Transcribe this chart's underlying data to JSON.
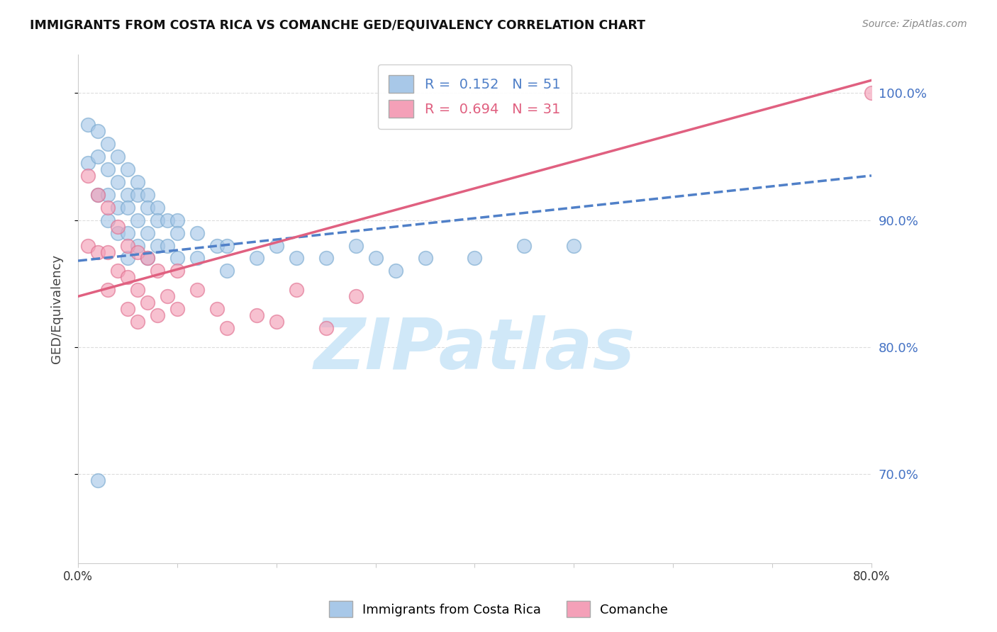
{
  "title": "IMMIGRANTS FROM COSTA RICA VS COMANCHE GED/EQUIVALENCY CORRELATION CHART",
  "source": "Source: ZipAtlas.com",
  "ylabel": "GED/Equivalency",
  "yticks": [
    0.7,
    0.8,
    0.9,
    1.0
  ],
  "ytick_labels": [
    "70.0%",
    "80.0%",
    "90.0%",
    "100.0%"
  ],
  "xlim": [
    0.0,
    0.08
  ],
  "ylim": [
    0.63,
    1.03
  ],
  "blue_R": 0.152,
  "blue_N": 51,
  "pink_R": 0.694,
  "pink_N": 31,
  "blue_color": "#a8c8e8",
  "pink_color": "#f4a0b8",
  "blue_edge_color": "#7aaad0",
  "pink_edge_color": "#e07090",
  "blue_line_color": "#5080c8",
  "pink_line_color": "#e06080",
  "legend_label_blue": "Immigrants from Costa Rica",
  "legend_label_pink": "Comanche",
  "watermark": "ZIPatlas",
  "watermark_color": "#d0e8f8",
  "blue_scatter_x": [
    0.001,
    0.001,
    0.002,
    0.002,
    0.002,
    0.003,
    0.003,
    0.003,
    0.003,
    0.004,
    0.004,
    0.004,
    0.004,
    0.005,
    0.005,
    0.005,
    0.005,
    0.005,
    0.006,
    0.006,
    0.006,
    0.006,
    0.007,
    0.007,
    0.007,
    0.007,
    0.008,
    0.008,
    0.008,
    0.009,
    0.009,
    0.01,
    0.01,
    0.01,
    0.012,
    0.012,
    0.014,
    0.015,
    0.015,
    0.018,
    0.02,
    0.022,
    0.025,
    0.028,
    0.03,
    0.032,
    0.035,
    0.04,
    0.045,
    0.05,
    0.002
  ],
  "blue_scatter_y": [
    0.975,
    0.945,
    0.97,
    0.95,
    0.92,
    0.96,
    0.94,
    0.92,
    0.9,
    0.95,
    0.93,
    0.91,
    0.89,
    0.94,
    0.92,
    0.91,
    0.89,
    0.87,
    0.93,
    0.92,
    0.9,
    0.88,
    0.92,
    0.91,
    0.89,
    0.87,
    0.91,
    0.9,
    0.88,
    0.9,
    0.88,
    0.9,
    0.89,
    0.87,
    0.89,
    0.87,
    0.88,
    0.88,
    0.86,
    0.87,
    0.88,
    0.87,
    0.87,
    0.88,
    0.87,
    0.86,
    0.87,
    0.87,
    0.88,
    0.88,
    0.695
  ],
  "pink_scatter_x": [
    0.001,
    0.001,
    0.002,
    0.002,
    0.003,
    0.003,
    0.003,
    0.004,
    0.004,
    0.005,
    0.005,
    0.005,
    0.006,
    0.006,
    0.006,
    0.007,
    0.007,
    0.008,
    0.008,
    0.009,
    0.01,
    0.01,
    0.012,
    0.014,
    0.015,
    0.018,
    0.02,
    0.022,
    0.025,
    0.028,
    0.08
  ],
  "pink_scatter_y": [
    0.935,
    0.88,
    0.92,
    0.875,
    0.91,
    0.875,
    0.845,
    0.895,
    0.86,
    0.88,
    0.855,
    0.83,
    0.875,
    0.845,
    0.82,
    0.87,
    0.835,
    0.86,
    0.825,
    0.84,
    0.86,
    0.83,
    0.845,
    0.83,
    0.815,
    0.825,
    0.82,
    0.845,
    0.815,
    0.84,
    1.0
  ],
  "blue_trend_x": [
    0.0,
    0.08
  ],
  "blue_trend_y": [
    0.868,
    0.935
  ],
  "pink_trend_x": [
    0.0,
    0.08
  ],
  "pink_trend_y": [
    0.84,
    1.01
  ],
  "right_tick_color": "#4472c4",
  "background_color": "#ffffff",
  "grid_color": "#dddddd",
  "spine_color": "#cccccc"
}
